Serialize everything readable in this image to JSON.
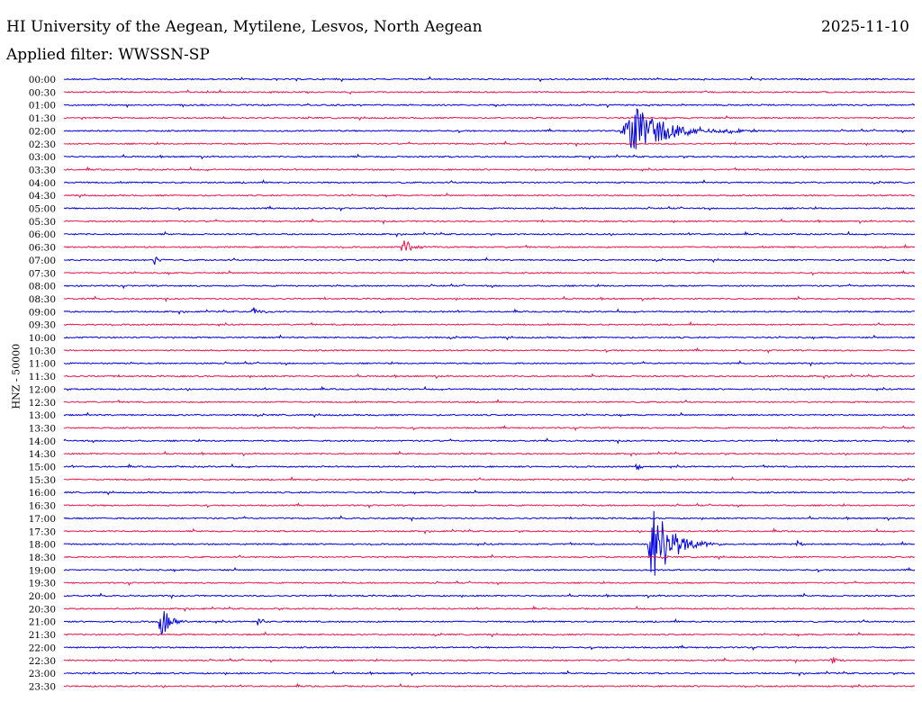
{
  "header": {
    "title": "HI University of the Aegean, Mytilene, Lesvos, North Aegean",
    "date": "2025-11-10",
    "filter": "Applied filter: WWSSN-SP"
  },
  "chart_data": {
    "type": "line",
    "ylabel": "HNZ - 50000",
    "colors": {
      "even_row": "#0000e6",
      "odd_row": "#f0144a"
    },
    "rows": [
      "00:00",
      "00:30",
      "01:00",
      "01:30",
      "02:00",
      "02:30",
      "03:00",
      "03:30",
      "04:00",
      "04:30",
      "05:00",
      "05:30",
      "06:00",
      "06:30",
      "07:00",
      "07:30",
      "08:00",
      "08:30",
      "09:00",
      "09:30",
      "10:00",
      "10:30",
      "11:00",
      "11:30",
      "12:00",
      "12:30",
      "13:00",
      "13:30",
      "14:00",
      "14:30",
      "15:00",
      "15:30",
      "16:00",
      "16:30",
      "17:00",
      "17:30",
      "18:00",
      "18:30",
      "19:00",
      "19:30",
      "20:00",
      "20:30",
      "21:00",
      "21:30",
      "22:00",
      "22:30",
      "23:00",
      "23:30"
    ],
    "events": [
      {
        "row": 4,
        "t": 0.655,
        "amp": 28,
        "dur": 0.17
      },
      {
        "row": 4,
        "t": 0.78,
        "amp": 6,
        "dur": 0.03
      },
      {
        "row": 13,
        "t": 0.395,
        "amp": 12,
        "dur": 0.04
      },
      {
        "row": 14,
        "t": 0.105,
        "amp": 6,
        "dur": 0.02
      },
      {
        "row": 18,
        "t": 0.22,
        "amp": 6,
        "dur": 0.03
      },
      {
        "row": 30,
        "t": 0.67,
        "amp": 4,
        "dur": 0.03
      },
      {
        "row": 36,
        "t": 0.685,
        "amp": 52,
        "dur": 0.09
      },
      {
        "row": 36,
        "t": 0.86,
        "amp": 6,
        "dur": 0.02
      },
      {
        "row": 42,
        "t": 0.11,
        "amp": 18,
        "dur": 0.05
      },
      {
        "row": 42,
        "t": 0.225,
        "amp": 6,
        "dur": 0.03
      },
      {
        "row": 45,
        "t": 0.9,
        "amp": 8,
        "dur": 0.02
      }
    ]
  }
}
